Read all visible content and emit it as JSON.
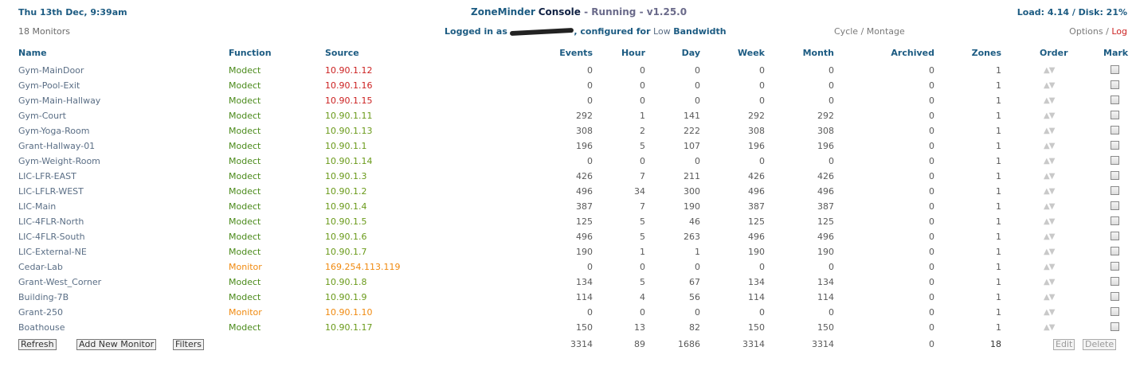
{
  "header": {
    "datetime": "Thu 13th Dec, 9:39am",
    "app_name": "ZoneMinder",
    "console": "Console",
    "status_sep": " - ",
    "status": "Running",
    "version_sep": " - ",
    "version": "v1.25.0",
    "load": "Load: 4.14 / Disk: 21%",
    "monitor_count": "18 Monitors",
    "logged_in_prefix": "Logged in as",
    "configured_for": ", configured for",
    "bandwidth": "Low",
    "bandwidth_suffix": "Bandwidth",
    "cycle": "Cycle",
    "montage": "Montage",
    "slash": "/",
    "options": "Options",
    "log": "Log"
  },
  "columns": {
    "name": "Name",
    "function": "Function",
    "source": "Source",
    "events": "Events",
    "hour": "Hour",
    "day": "Day",
    "week": "Week",
    "month": "Month",
    "archived": "Archived",
    "zones": "Zones",
    "order": "Order",
    "mark": "Mark"
  },
  "colors": {
    "red": "#cc2222",
    "green": "#6a9a1a",
    "orange": "#f08a10",
    "modect": "#4a8a1a"
  },
  "monitors": [
    {
      "name": "Gym-MainDoor",
      "function": "Modect",
      "source": "10.90.1.12",
      "src_color": "red",
      "events": "0",
      "hour": "0",
      "day": "0",
      "week": "0",
      "month": "0",
      "archived": "0",
      "zones": "1"
    },
    {
      "name": "Gym-Pool-Exit",
      "function": "Modect",
      "source": "10.90.1.16",
      "src_color": "red",
      "events": "0",
      "hour": "0",
      "day": "0",
      "week": "0",
      "month": "0",
      "archived": "0",
      "zones": "1"
    },
    {
      "name": "Gym-Main-Hallway",
      "function": "Modect",
      "source": "10.90.1.15",
      "src_color": "red",
      "events": "0",
      "hour": "0",
      "day": "0",
      "week": "0",
      "month": "0",
      "archived": "0",
      "zones": "1"
    },
    {
      "name": "Gym-Court",
      "function": "Modect",
      "source": "10.90.1.11",
      "src_color": "green",
      "events": "292",
      "hour": "1",
      "day": "141",
      "week": "292",
      "month": "292",
      "archived": "0",
      "zones": "1"
    },
    {
      "name": "Gym-Yoga-Room",
      "function": "Modect",
      "source": "10.90.1.13",
      "src_color": "green",
      "events": "308",
      "hour": "2",
      "day": "222",
      "week": "308",
      "month": "308",
      "archived": "0",
      "zones": "1"
    },
    {
      "name": "Grant-Hallway-01",
      "function": "Modect",
      "source": "10.90.1.1",
      "src_color": "green",
      "events": "196",
      "hour": "5",
      "day": "107",
      "week": "196",
      "month": "196",
      "archived": "0",
      "zones": "1"
    },
    {
      "name": "Gym-Weight-Room",
      "function": "Modect",
      "source": "10.90.1.14",
      "src_color": "green",
      "events": "0",
      "hour": "0",
      "day": "0",
      "week": "0",
      "month": "0",
      "archived": "0",
      "zones": "1"
    },
    {
      "name": "LIC-LFR-EAST",
      "function": "Modect",
      "source": "10.90.1.3",
      "src_color": "green",
      "events": "426",
      "hour": "7",
      "day": "211",
      "week": "426",
      "month": "426",
      "archived": "0",
      "zones": "1"
    },
    {
      "name": "LIC-LFLR-WEST",
      "function": "Modect",
      "source": "10.90.1.2",
      "src_color": "green",
      "events": "496",
      "hour": "34",
      "day": "300",
      "week": "496",
      "month": "496",
      "archived": "0",
      "zones": "1"
    },
    {
      "name": "LIC-Main",
      "function": "Modect",
      "source": "10.90.1.4",
      "src_color": "green",
      "events": "387",
      "hour": "7",
      "day": "190",
      "week": "387",
      "month": "387",
      "archived": "0",
      "zones": "1"
    },
    {
      "name": "LIC-4FLR-North",
      "function": "Modect",
      "source": "10.90.1.5",
      "src_color": "green",
      "events": "125",
      "hour": "5",
      "day": "46",
      "week": "125",
      "month": "125",
      "archived": "0",
      "zones": "1"
    },
    {
      "name": "LIC-4FLR-South",
      "function": "Modect",
      "source": "10.90.1.6",
      "src_color": "green",
      "events": "496",
      "hour": "5",
      "day": "263",
      "week": "496",
      "month": "496",
      "archived": "0",
      "zones": "1"
    },
    {
      "name": "LIC-External-NE",
      "function": "Modect",
      "source": "10.90.1.7",
      "src_color": "green",
      "events": "190",
      "hour": "1",
      "day": "1",
      "week": "190",
      "month": "190",
      "archived": "0",
      "zones": "1"
    },
    {
      "name": "Cedar-Lab",
      "function": "Monitor",
      "source": "169.254.113.119",
      "src_color": "orange",
      "events": "0",
      "hour": "0",
      "day": "0",
      "week": "0",
      "month": "0",
      "archived": "0",
      "zones": "1"
    },
    {
      "name": "Grant-West_Corner",
      "function": "Modect",
      "source": "10.90.1.8",
      "src_color": "green",
      "events": "134",
      "hour": "5",
      "day": "67",
      "week": "134",
      "month": "134",
      "archived": "0",
      "zones": "1"
    },
    {
      "name": "Building-7B",
      "function": "Modect",
      "source": "10.90.1.9",
      "src_color": "green",
      "events": "114",
      "hour": "4",
      "day": "56",
      "week": "114",
      "month": "114",
      "archived": "0",
      "zones": "1"
    },
    {
      "name": "Grant-250",
      "function": "Monitor",
      "source": "10.90.1.10",
      "src_color": "orange",
      "events": "0",
      "hour": "0",
      "day": "0",
      "week": "0",
      "month": "0",
      "archived": "0",
      "zones": "1"
    },
    {
      "name": "Boathouse",
      "function": "Modect",
      "source": "10.90.1.17",
      "src_color": "green",
      "events": "150",
      "hour": "13",
      "day": "82",
      "week": "150",
      "month": "150",
      "archived": "0",
      "zones": "1"
    }
  ],
  "totals": {
    "events": "3314",
    "hour": "89",
    "day": "1686",
    "week": "3314",
    "month": "3314",
    "archived": "0",
    "zones": "18"
  },
  "buttons": {
    "refresh": "Refresh",
    "add": "Add New Monitor",
    "filters": "Filters",
    "edit": "Edit",
    "delete": "Delete"
  },
  "order_glyph": "▲▼"
}
